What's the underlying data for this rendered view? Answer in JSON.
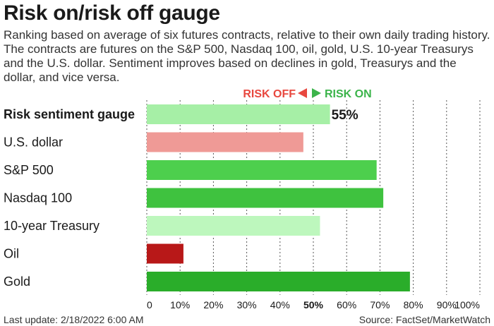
{
  "title": "Risk on/risk off gauge",
  "subtitle": "Ranking based on average of six futures contracts, relative to their own daily trading history. The contracts are futures on the S&P 500, Nasdaq 100, oil, gold, U.S. 10-year Treasurys and the U.S. dollar. Sentiment improves based on declines in gold, Treasurys and the dollar, and vice versa.",
  "legend": {
    "risk_off": "RISK OFF",
    "risk_on": "RISK ON",
    "risk_off_color": "#e8483f",
    "risk_on_color": "#3cb44b"
  },
  "footer": {
    "last_update": "Last update: 2/18/2022 6:00 AM",
    "source": "Source: FactSet/MarketWatch"
  },
  "chart_data": {
    "type": "bar",
    "orientation": "horizontal",
    "categories": [
      "Risk sentiment gauge",
      "U.S. dollar",
      "S&P 500",
      "Nasdaq 100",
      "10-year Treasury",
      "Oil",
      "Gold"
    ],
    "values": [
      55,
      47,
      69,
      71,
      52,
      11,
      79
    ],
    "colors": [
      "#a6efa6",
      "#ef9a96",
      "#4dcf4d",
      "#3fc23f",
      "#bdf7bd",
      "#b81818",
      "#2aad2a"
    ],
    "data_labels": [
      "55%",
      "",
      "",
      "",
      "",
      "",
      ""
    ],
    "x_ticks": [
      "0",
      "10%",
      "20%",
      "30%",
      "40%",
      "50%",
      "60%",
      "70%",
      "80%",
      "90%",
      "100%"
    ],
    "xlim": [
      0,
      100
    ],
    "midpoint": 50,
    "grid": "vertical dotted"
  }
}
